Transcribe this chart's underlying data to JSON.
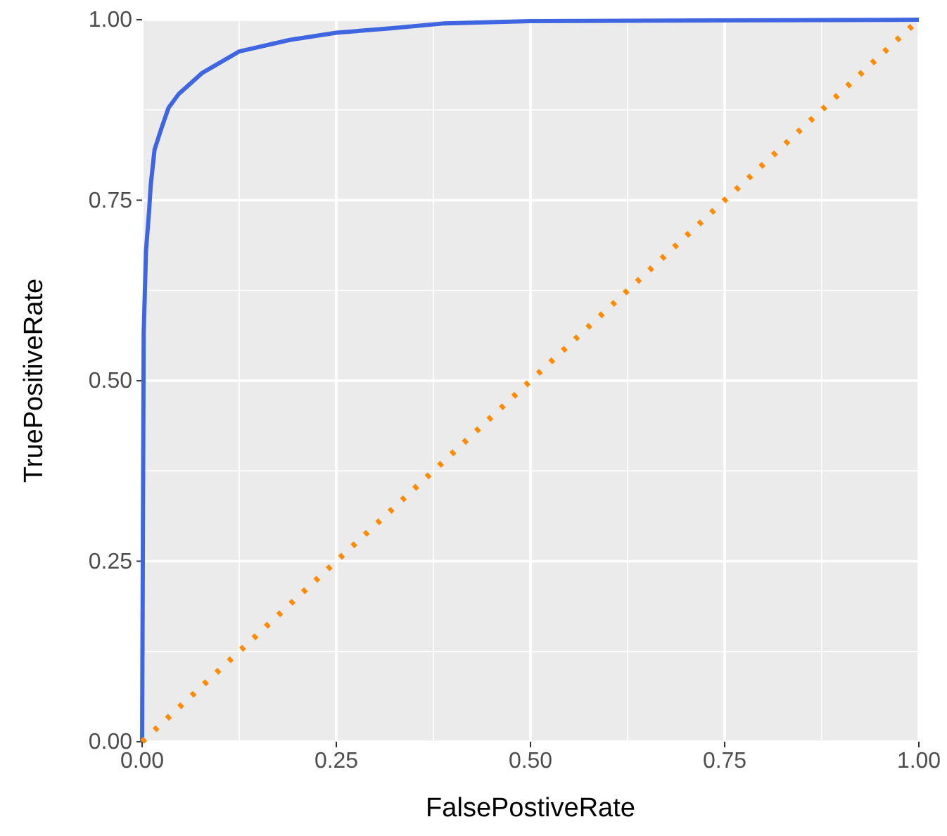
{
  "chart_data": {
    "type": "line",
    "xlabel": "FalsePostiveRate",
    "ylabel": "TruePositiveRate",
    "xlim": [
      0,
      1
    ],
    "ylim": [
      0,
      1
    ],
    "xticks": [
      {
        "value": 0,
        "label": "0.00"
      },
      {
        "value": 0.25,
        "label": "0.25"
      },
      {
        "value": 0.5,
        "label": "0.50"
      },
      {
        "value": 0.75,
        "label": "0.75"
      },
      {
        "value": 1,
        "label": "1.00"
      }
    ],
    "yticks": [
      {
        "value": 0,
        "label": "0.00"
      },
      {
        "value": 0.25,
        "label": "0.25"
      },
      {
        "value": 0.5,
        "label": "0.50"
      },
      {
        "value": 0.75,
        "label": "0.75"
      },
      {
        "value": 1,
        "label": "1.00"
      }
    ],
    "grid": true,
    "marker": "none",
    "series": [
      {
        "color": "#3f66e0",
        "line_style": "solid",
        "x": [
          0,
          0.002,
          0.005,
          0.009,
          0.011,
          0.016,
          0.025,
          0.034,
          0.047,
          0.077,
          0.125,
          0.19,
          0.25,
          0.32,
          0.39,
          0.5,
          1
        ],
        "values": [
          0,
          0.565,
          0.68,
          0.735,
          0.77,
          0.82,
          0.85,
          0.878,
          0.897,
          0.926,
          0.956,
          0.972,
          0.982,
          0.988,
          0.995,
          0.998,
          1
        ]
      },
      {
        "color": "#ff8c00",
        "line_style": "dotted",
        "x": [
          0,
          1
        ],
        "values": [
          0,
          1
        ]
      }
    ]
  }
}
